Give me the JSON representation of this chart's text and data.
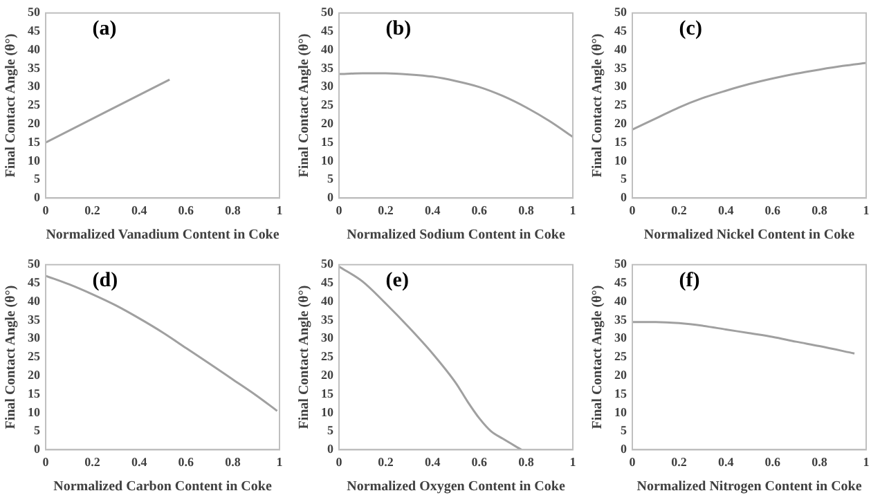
{
  "chart_data": [
    {
      "type": "line",
      "x": [
        0,
        0.53
      ],
      "values": [
        15,
        32
      ],
      "color": "#a0a0a0",
      "marker": "none",
      "xlabel": "Normalized Vanadium Content in Coke",
      "ylabel": "Final Contact Angle (θ°)",
      "xlim": [
        0,
        1
      ],
      "xticks": [
        0,
        0.2,
        0.4,
        0.6,
        0.8,
        1
      ],
      "ylim": [
        0,
        50
      ],
      "yticks": [
        0,
        5,
        10,
        15,
        20,
        25,
        30,
        35,
        40,
        45,
        50
      ],
      "annotations": [
        "(a)"
      ]
    },
    {
      "type": "line",
      "x": [
        0,
        0.1,
        0.2,
        0.3,
        0.4,
        0.5,
        0.6,
        0.7,
        0.8,
        0.9,
        1
      ],
      "values": [
        33.5,
        33.7,
        33.7,
        33.4,
        32.8,
        31.6,
        30,
        27.6,
        24.5,
        20.8,
        16.5
      ],
      "color": "#a0a0a0",
      "marker": "none",
      "xlabel": "Normalized Sodium Content in Coke",
      "ylabel": "Final Contact Angle (θ°)",
      "xlim": [
        0,
        1
      ],
      "xticks": [
        0,
        0.2,
        0.4,
        0.6,
        0.8,
        1
      ],
      "ylim": [
        0,
        50
      ],
      "yticks": [
        0,
        5,
        10,
        15,
        20,
        25,
        30,
        35,
        40,
        45,
        50
      ],
      "annotations": [
        "(b)"
      ]
    },
    {
      "type": "line",
      "x": [
        0,
        0.1,
        0.2,
        0.3,
        0.4,
        0.5,
        0.6,
        0.7,
        0.8,
        0.9,
        1
      ],
      "values": [
        18.5,
        21.5,
        24.5,
        27,
        29,
        30.8,
        32.3,
        33.6,
        34.7,
        35.7,
        36.5
      ],
      "color": "#a0a0a0",
      "marker": "none",
      "xlabel": "Normalized Nickel Content in Coke",
      "ylabel": "Final Contact Angle (θ°)",
      "xlim": [
        0,
        1
      ],
      "xticks": [
        0,
        0.2,
        0.4,
        0.6,
        0.8,
        1
      ],
      "ylim": [
        0,
        50
      ],
      "yticks": [
        0,
        5,
        10,
        15,
        20,
        25,
        30,
        35,
        40,
        45,
        50
      ],
      "annotations": [
        "(c)"
      ]
    },
    {
      "type": "line",
      "x": [
        0,
        0.1,
        0.2,
        0.3,
        0.4,
        0.5,
        0.6,
        0.7,
        0.8,
        0.9,
        0.99
      ],
      "values": [
        47,
        44.7,
        42,
        39,
        35.5,
        31.7,
        27.5,
        23.3,
        19,
        14.7,
        10.5
      ],
      "color": "#a0a0a0",
      "marker": "none",
      "xlabel": "Normalized Carbon Content in Coke",
      "ylabel": "Final Contact Angle (θ°)",
      "xlim": [
        0,
        1
      ],
      "xticks": [
        0,
        0.2,
        0.4,
        0.6,
        0.8,
        1
      ],
      "ylim": [
        0,
        50
      ],
      "yticks": [
        0,
        5,
        10,
        15,
        20,
        25,
        30,
        35,
        40,
        45,
        50
      ],
      "annotations": [
        "(d)"
      ]
    },
    {
      "type": "line",
      "x": [
        0,
        0.1,
        0.2,
        0.3,
        0.4,
        0.5,
        0.55,
        0.6,
        0.65,
        0.7,
        0.78
      ],
      "values": [
        49.5,
        45.5,
        39.5,
        33,
        26,
        18,
        13,
        8.5,
        5,
        3,
        0
      ],
      "color": "#a0a0a0",
      "marker": "none",
      "xlabel": "Normalized Oxygen Content in Coke",
      "ylabel": "Final Contact Angle (θ°)",
      "xlim": [
        0,
        1
      ],
      "xticks": [
        0,
        0.2,
        0.4,
        0.6,
        0.8,
        1
      ],
      "ylim": [
        0,
        50
      ],
      "yticks": [
        0,
        5,
        10,
        15,
        20,
        25,
        30,
        35,
        40,
        45,
        50
      ],
      "annotations": [
        "(e)"
      ]
    },
    {
      "type": "line",
      "x": [
        0,
        0.1,
        0.2,
        0.3,
        0.4,
        0.5,
        0.6,
        0.7,
        0.8,
        0.95
      ],
      "values": [
        34.5,
        34.5,
        34.2,
        33.5,
        32.5,
        31.5,
        30.5,
        29.2,
        28,
        26
      ],
      "color": "#a0a0a0",
      "marker": "none",
      "xlabel": "Normalized Nitrogen Content in Coke",
      "ylabel": "Final Contact Angle (θ°)",
      "xlim": [
        0,
        1
      ],
      "xticks": [
        0,
        0.2,
        0.4,
        0.6,
        0.8,
        1
      ],
      "ylim": [
        0,
        50
      ],
      "yticks": [
        0,
        5,
        10,
        15,
        20,
        25,
        30,
        35,
        40,
        45,
        50
      ],
      "annotations": [
        "(f)"
      ]
    }
  ]
}
